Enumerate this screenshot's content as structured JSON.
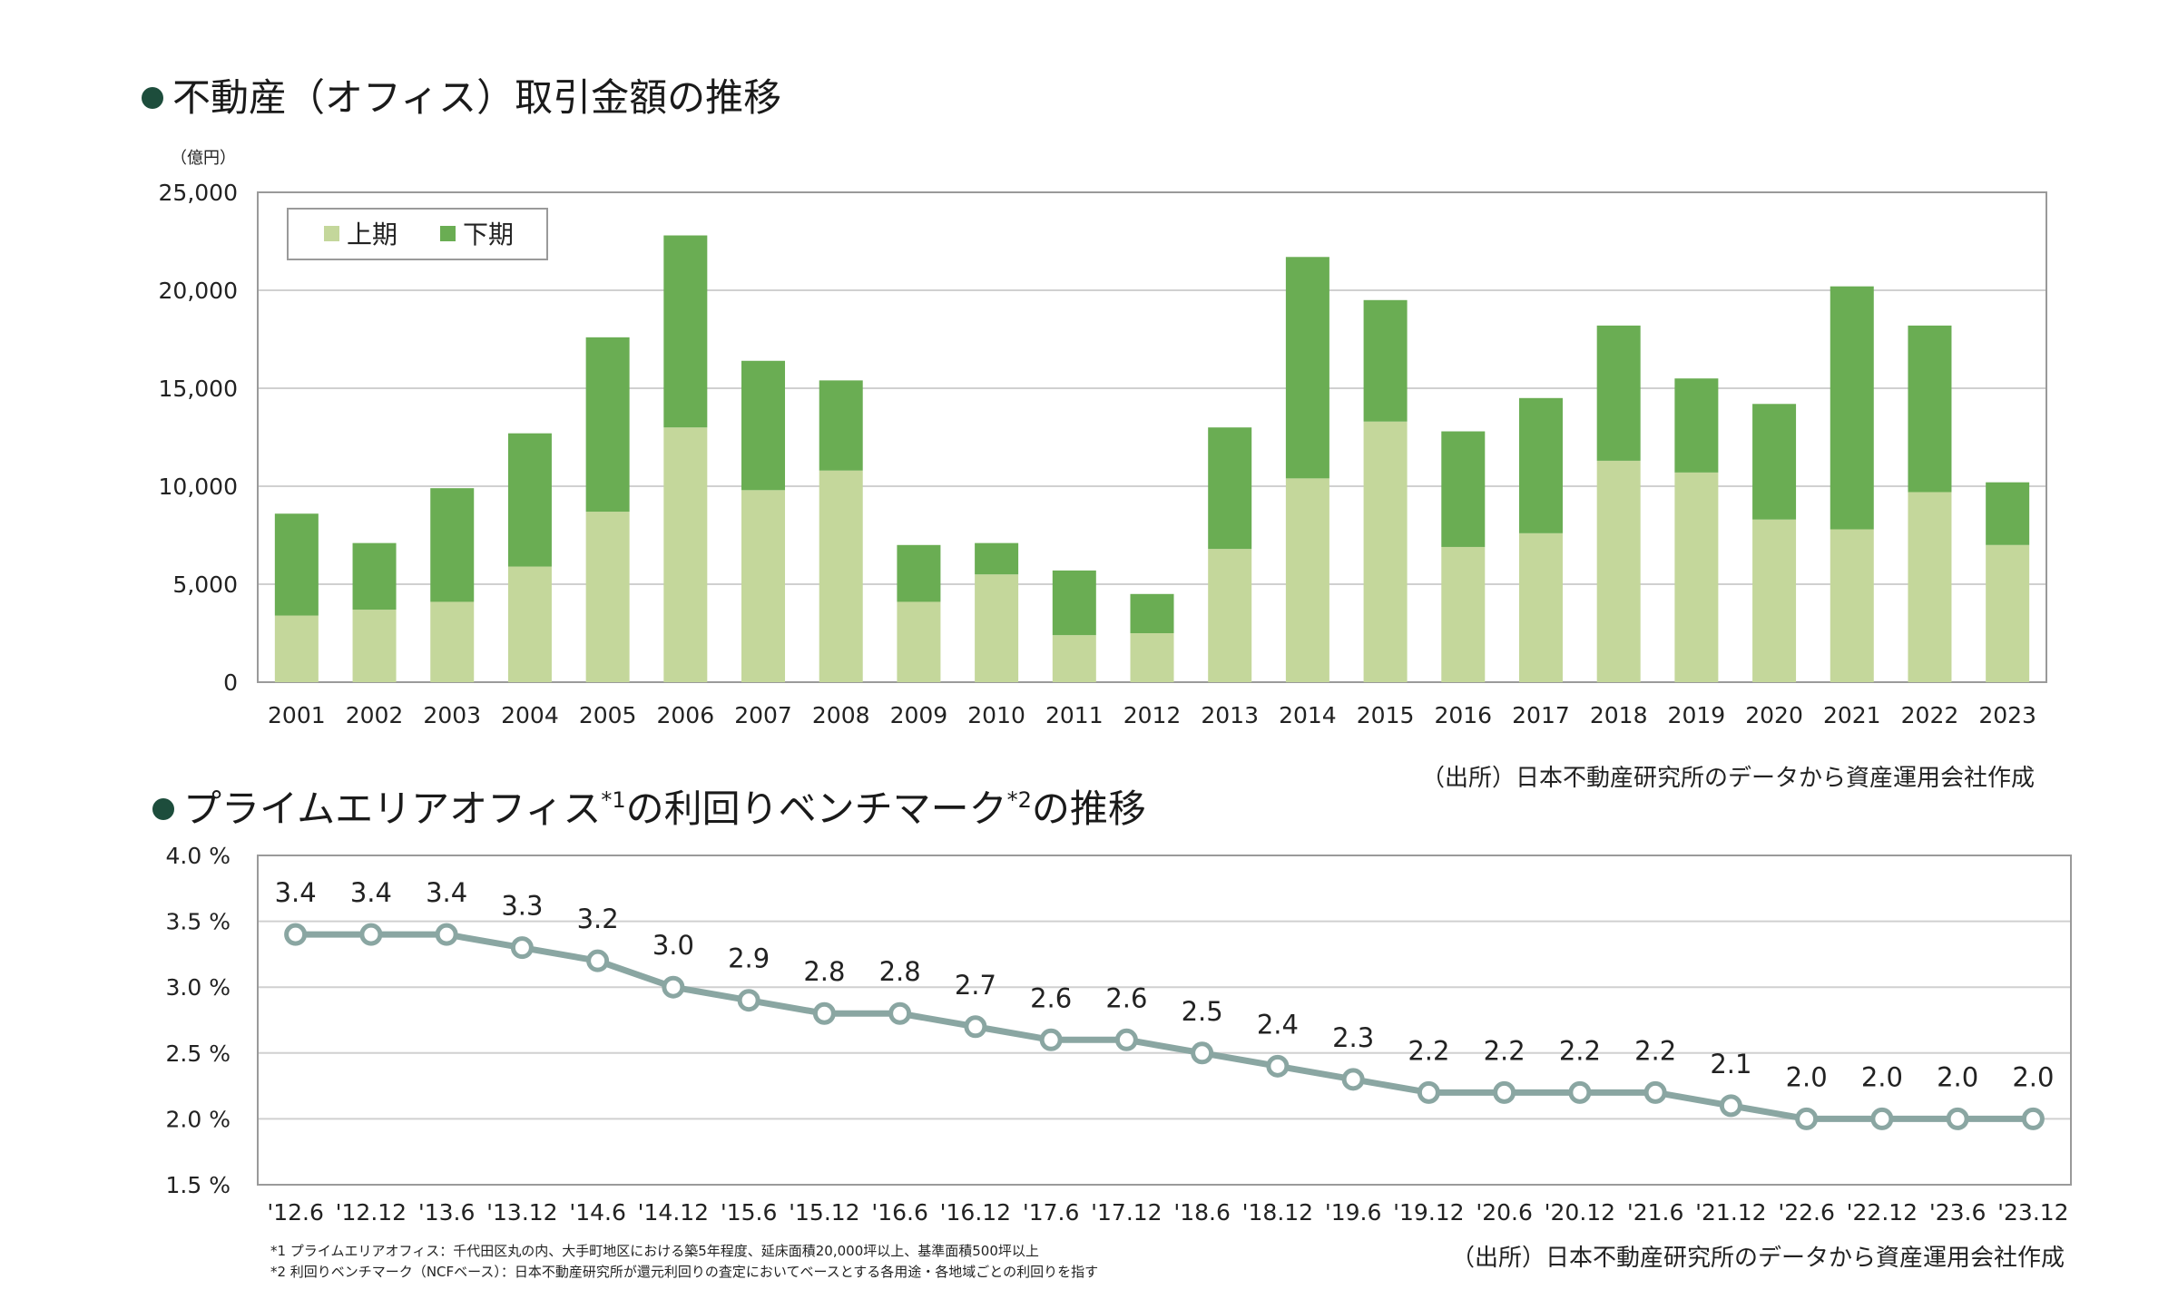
{
  "chart1": {
    "title": "不動産（オフィス）取引金額の推移",
    "unit": "（億円）",
    "source": "（出所）日本不動産研究所のデータから資産運用会社作成",
    "colors": {
      "first": "#c4d79b",
      "second": "#6aad53",
      "accent": "#1d4d3c"
    },
    "y_ticks": [
      "0",
      "5,000",
      "10,000",
      "15,000",
      "20,000",
      "25,000"
    ]
  },
  "chart2": {
    "title": "プライムエリアオフィス",
    "title_sup1": "*1",
    "title_mid": "の利回りベンチマーク",
    "title_sup2": "*2",
    "title_end": "の推移",
    "source": "（出所）日本不動産研究所のデータから資産運用会社作成",
    "note1": "*1 プライムエリアオフィス：千代田区丸の内、大手町地区における築5年程度、延床面積20,000坪以上、基準面積500坪以上",
    "note2": "*2 利回りベンチマーク（NCFベース）：日本不動産研究所が還元利回りの査定においてベースとする各用途・各地域ごとの利回りを指す",
    "colors": {
      "line": "#8aa6a2"
    },
    "y_ticks": [
      "1.5 %",
      "2.0 %",
      "2.5 %",
      "3.0 %",
      "3.5 %",
      "4.0 %"
    ]
  },
  "chart_data": [
    {
      "type": "bar",
      "stacked": true,
      "title": "不動産（オフィス）取引金額の推移",
      "ylabel": "（億円）",
      "ylim": [
        0,
        25000
      ],
      "grid": true,
      "legend": "top-left",
      "categories": [
        "2001",
        "2002",
        "2003",
        "2004",
        "2005",
        "2006",
        "2007",
        "2008",
        "2009",
        "2010",
        "2011",
        "2012",
        "2013",
        "2014",
        "2015",
        "2016",
        "2017",
        "2018",
        "2019",
        "2020",
        "2021",
        "2022",
        "2023"
      ],
      "series": [
        {
          "name": "上期",
          "values": [
            3400,
            3700,
            4100,
            5900,
            8700,
            13000,
            9800,
            10800,
            4100,
            5500,
            2400,
            2500,
            6800,
            10400,
            13300,
            6900,
            7600,
            11300,
            10700,
            8300,
            7800,
            9700,
            7000
          ]
        },
        {
          "name": "下期",
          "values": [
            5200,
            3400,
            5800,
            6800,
            8900,
            9800,
            6600,
            4600,
            2900,
            1600,
            3300,
            2000,
            6200,
            11300,
            6200,
            5900,
            6900,
            6900,
            4800,
            5900,
            12400,
            8500,
            3200
          ]
        }
      ]
    },
    {
      "type": "line",
      "title": "プライムエリアオフィスの利回りベンチマークの推移",
      "ylim": [
        1.5,
        4.0
      ],
      "grid": true,
      "x": [
        "'12.6",
        "'12.12",
        "'13.6",
        "'13.12",
        "'14.6",
        "'14.12",
        "'15.6",
        "'15.12",
        "'16.6",
        "'16.12",
        "'17.6",
        "'17.12",
        "'18.6",
        "'18.12",
        "'19.6",
        "'19.12",
        "'20.6",
        "'20.12",
        "'21.6",
        "'21.12",
        "'22.6",
        "'22.12",
        "'23.6",
        "'23.12"
      ],
      "series": [
        {
          "values": [
            3.4,
            3.4,
            3.4,
            3.3,
            3.2,
            3.0,
            2.9,
            2.8,
            2.8,
            2.7,
            2.6,
            2.6,
            2.5,
            2.4,
            2.3,
            2.2,
            2.2,
            2.2,
            2.2,
            2.1,
            2.0,
            2.0,
            2.0,
            2.0
          ]
        }
      ],
      "data_labels": [
        "3.4",
        "3.4",
        "3.4",
        "3.3",
        "3.2",
        "3.0",
        "2.9",
        "2.8",
        "2.8",
        "2.7",
        "2.6",
        "2.6",
        "2.5",
        "2.4",
        "2.3",
        "2.2",
        "2.2",
        "2.2",
        "2.2",
        "2.1",
        "2.0",
        "2.0",
        "2.0",
        "2.0"
      ]
    }
  ]
}
